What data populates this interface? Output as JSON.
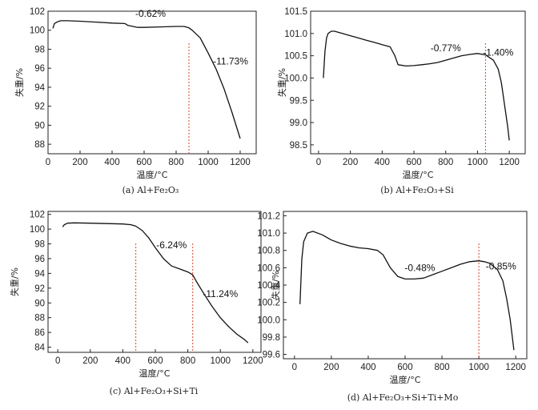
{
  "chart_data": [
    {
      "type": "line",
      "caption": "(a) Al+Fe₂O₃",
      "xlabel": "温度/°C",
      "ylabel": "失重/%",
      "xlim": [
        0,
        1300
      ],
      "xticks": [
        "0",
        "200",
        "400",
        "600",
        "800",
        "1000",
        "1200"
      ],
      "ylim": [
        87,
        102
      ],
      "yticks": [
        "88",
        "90",
        "92",
        "94",
        "96",
        "98",
        "100",
        "102"
      ],
      "series": [
        {
          "name": "Al+Fe₂O₃",
          "x": [
            30,
            40,
            60,
            80,
            120,
            200,
            300,
            400,
            480,
            500,
            560,
            600,
            700,
            800,
            850,
            880,
            900,
            950,
            1000,
            1050,
            1100,
            1150,
            1200
          ],
          "y": [
            100.2,
            100.7,
            100.9,
            101.0,
            101.0,
            100.95,
            100.85,
            100.75,
            100.7,
            100.5,
            100.3,
            100.3,
            100.35,
            100.4,
            100.4,
            100.25,
            100.0,
            99.2,
            97.6,
            95.9,
            93.8,
            91.3,
            88.6
          ]
        }
      ],
      "dividers": [
        880
      ],
      "annotations": [
        {
          "text": "-0.62%",
          "x": 640,
          "y": 101.4
        },
        {
          "text": "-11.73%",
          "x": 1140,
          "y": 96.4
        }
      ]
    },
    {
      "type": "line",
      "caption": "(b) Al+Fe₂O₃+Si",
      "xlabel": "温度/°C",
      "ylabel": "失重/%",
      "xlim": [
        -50,
        1300
      ],
      "xticks": [
        "0",
        "200",
        "400",
        "600",
        "800",
        "1000",
        "1200"
      ],
      "ylim": [
        98.3,
        101.5
      ],
      "yticks": [
        "98.5",
        "99.0",
        "99.5",
        "100.0",
        "100.5",
        "101.0",
        "101.5"
      ],
      "series": [
        {
          "name": "Al+Fe₂O₃+Si",
          "x": [
            30,
            40,
            50,
            60,
            80,
            100,
            150,
            200,
            250,
            300,
            350,
            400,
            450,
            480,
            500,
            550,
            600,
            650,
            700,
            750,
            800,
            850,
            900,
            950,
            1000,
            1050,
            1100,
            1130,
            1150,
            1170,
            1190,
            1200
          ],
          "y": [
            100.0,
            100.6,
            100.9,
            101.0,
            101.05,
            101.05,
            101.0,
            100.95,
            100.9,
            100.85,
            100.8,
            100.75,
            100.7,
            100.5,
            100.3,
            100.27,
            100.28,
            100.3,
            100.32,
            100.35,
            100.4,
            100.45,
            100.5,
            100.53,
            100.55,
            100.52,
            100.4,
            100.2,
            99.9,
            99.4,
            98.9,
            98.6
          ]
        }
      ],
      "dividers": [
        1050
      ],
      "annotations": [
        {
          "text": "-0.77%",
          "x": 800,
          "y": 100.6
        },
        {
          "text": "-1.40%",
          "x": 1130,
          "y": 100.5
        }
      ]
    },
    {
      "type": "line",
      "caption": "(c) Al+Fe₂O₃+Si+Ti",
      "xlabel": "温度/°C",
      "ylabel": "失重/%",
      "xlim": [
        -60,
        1250
      ],
      "xticks": [
        "0",
        "200",
        "400",
        "600",
        "800",
        "1000",
        "1200"
      ],
      "ylim": [
        83.3,
        102.4
      ],
      "yticks": [
        "84",
        "86",
        "88",
        "90",
        "92",
        "94",
        "96",
        "98",
        "100",
        "102"
      ],
      "series": [
        {
          "name": "Al+Fe₂O₃+Si+Ti",
          "x": [
            30,
            40,
            60,
            100,
            200,
            300,
            400,
            450,
            480,
            520,
            560,
            600,
            650,
            700,
            750,
            800,
            830,
            850,
            900,
            950,
            1000,
            1050,
            1100,
            1150,
            1170
          ],
          "y": [
            100.3,
            100.6,
            100.8,
            100.85,
            100.8,
            100.75,
            100.7,
            100.6,
            100.4,
            99.8,
            98.8,
            97.5,
            96.0,
            95.0,
            94.6,
            94.2,
            93.8,
            93.0,
            91.2,
            89.5,
            88.0,
            86.8,
            85.8,
            85.0,
            84.6
          ]
        }
      ],
      "dividers": [
        480,
        830
      ],
      "annotations": [
        {
          "text": "-6.24%",
          "x": 700,
          "y": 97.4
        },
        {
          "text": "-11.24%",
          "x": 1000,
          "y": 90.8
        }
      ]
    },
    {
      "type": "line",
      "caption": "(d) Al+Fe₂O₃+Si+Ti+Mo",
      "xlabel": "温度/°C",
      "ylabel": "失重/%",
      "xlim": [
        -60,
        1260
      ],
      "xticks": [
        "0",
        "200",
        "400",
        "600",
        "800",
        "1000",
        "1200"
      ],
      "ylim": [
        99.55,
        101.25
      ],
      "yticks": [
        "99.6",
        "99.8",
        "100.0",
        "100.2",
        "100.4",
        "100.6",
        "100.8",
        "101.0",
        "101.2"
      ],
      "series": [
        {
          "name": "Al+Fe₂O₃+Si+Ti+Mo",
          "x": [
            30,
            40,
            50,
            70,
            100,
            150,
            200,
            250,
            300,
            350,
            400,
            450,
            480,
            520,
            560,
            600,
            650,
            700,
            750,
            800,
            850,
            900,
            950,
            1000,
            1030,
            1060,
            1100,
            1130,
            1150,
            1170,
            1190
          ],
          "y": [
            100.18,
            100.7,
            100.9,
            101.0,
            101.02,
            100.98,
            100.92,
            100.88,
            100.85,
            100.83,
            100.82,
            100.8,
            100.75,
            100.6,
            100.5,
            100.47,
            100.47,
            100.48,
            100.52,
            100.56,
            100.6,
            100.64,
            100.67,
            100.68,
            100.67,
            100.65,
            100.58,
            100.45,
            100.25,
            100.0,
            99.65
          ]
        }
      ],
      "dividers": [
        1000
      ],
      "annotations": [
        {
          "text": "-0.48%",
          "x": 680,
          "y": 100.56
        },
        {
          "text": "-0.85%",
          "x": 1120,
          "y": 100.58
        }
      ]
    }
  ]
}
